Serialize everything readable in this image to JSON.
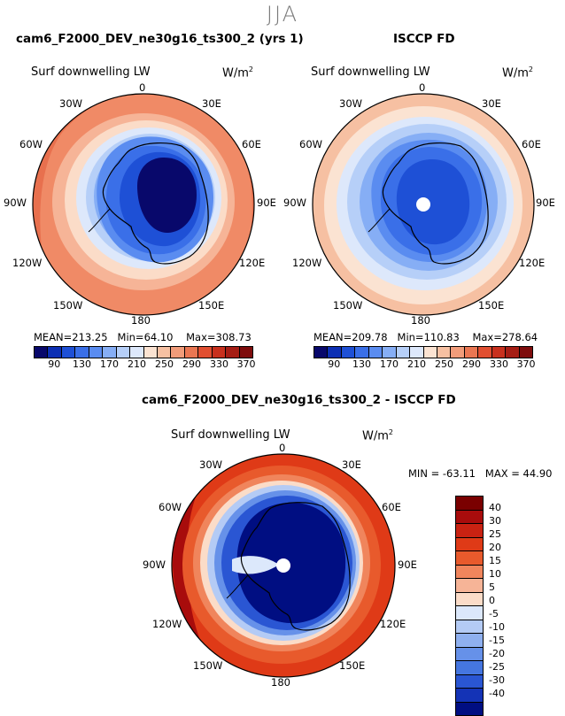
{
  "season": "JJA",
  "panels": [
    {
      "title": "cam6_F2000_DEV_ne30g16_ts300_2 (yrs 1)",
      "variable": "Surf downwelling LW",
      "units": "W/m",
      "units_exp": "2",
      "lon_labels": [
        "0",
        "30E",
        "60E",
        "90E",
        "120E",
        "150E",
        "180",
        "150W",
        "120W",
        "90W",
        "60W",
        "30W"
      ],
      "mean_label": "MEAN=",
      "mean": "213.25",
      "min_label": "Min=",
      "min": "64.10",
      "max_label": "Max=",
      "max": "308.73",
      "colorbar_ticks": [
        "90",
        "130",
        "170",
        "210",
        "250",
        "290",
        "330",
        "370"
      ]
    },
    {
      "title": "ISCCP FD",
      "variable": "Surf downwelling LW",
      "units": "W/m",
      "units_exp": "2",
      "lon_labels": [
        "0",
        "30E",
        "60E",
        "90E",
        "120E",
        "150E",
        "180",
        "150W",
        "120W",
        "90W",
        "60W",
        "30W"
      ],
      "mean_label": "MEAN=",
      "mean": "209.78",
      "min_label": "Min=",
      "min": "110.83",
      "max_label": "Max=",
      "max": "278.64",
      "colorbar_ticks": [
        "90",
        "130",
        "170",
        "210",
        "250",
        "290",
        "330",
        "370"
      ]
    }
  ],
  "diff": {
    "title": "cam6_F2000_DEV_ne30g16_ts300_2 - ISCCP FD",
    "variable": "Surf downwelling LW",
    "units": "W/m",
    "units_exp": "2",
    "lon_labels": [
      "0",
      "30E",
      "60E",
      "90E",
      "120E",
      "150E",
      "180",
      "150W",
      "120W",
      "90W",
      "60W",
      "30W"
    ],
    "min_label": "MIN =",
    "min": "-63.11",
    "max_label": "MAX =",
    "max": "44.90",
    "colorbar_ticks": [
      "40",
      "30",
      "25",
      "20",
      "15",
      "10",
      "5",
      "0",
      "-5",
      "-10",
      "-15",
      "-20",
      "-25",
      "-30",
      "-40"
    ]
  },
  "colors": {
    "seq": [
      "#08086b",
      "#0c2fb4",
      "#1e50d6",
      "#3a6fe8",
      "#5a8cf0",
      "#86aef5",
      "#b6cff8",
      "#dde8fb",
      "#fbe3d2",
      "#f6c0a2",
      "#f19c7a",
      "#ea7652",
      "#e04e30",
      "#c8301d",
      "#a51d14",
      "#7e0c0c"
    ],
    "div": [
      "#7a0000",
      "#a80c0c",
      "#c92212",
      "#df3a17",
      "#e85a2c",
      "#f0855c",
      "#f6b497",
      "#fbdcc8",
      "#dce8fb",
      "#b4cbf5",
      "#8fb0ef",
      "#6691e9",
      "#4576e0",
      "#2a56d3",
      "#1433b6",
      "#000e82"
    ]
  }
}
